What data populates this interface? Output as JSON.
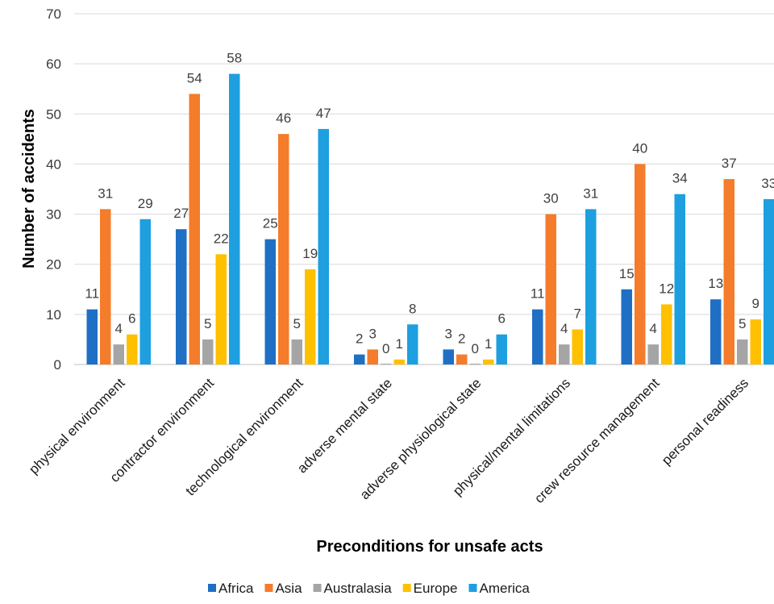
{
  "chart_data": {
    "type": "bar",
    "title": "",
    "xlabel": "Preconditions for unsafe acts",
    "ylabel": "Number of accidents",
    "ylim": [
      0,
      70
    ],
    "yticks": [
      0,
      10,
      20,
      30,
      40,
      50,
      60,
      70
    ],
    "grid": true,
    "legend_position": "bottom",
    "categories": [
      "physical environment",
      "contractor environment",
      "technological environment",
      "adverse mental state",
      "adverse physiological state",
      "physical/mental limitations",
      "crew resource management",
      "personal readiness"
    ],
    "series": [
      {
        "name": "Africa",
        "color": "#1f6fc5",
        "values": [
          11,
          27,
          25,
          2,
          3,
          11,
          15,
          13
        ]
      },
      {
        "name": "Asia",
        "color": "#f47c2b",
        "values": [
          31,
          54,
          46,
          3,
          2,
          30,
          40,
          37
        ]
      },
      {
        "name": "Australasia",
        "color": "#a5a5a5",
        "values": [
          4,
          5,
          5,
          0,
          0,
          4,
          4,
          5
        ]
      },
      {
        "name": "Europe",
        "color": "#ffc000",
        "values": [
          6,
          22,
          19,
          1,
          1,
          7,
          12,
          9
        ]
      },
      {
        "name": "America",
        "color": "#1d9fe0",
        "values": [
          29,
          58,
          47,
          8,
          6,
          31,
          34,
          33
        ]
      }
    ]
  }
}
